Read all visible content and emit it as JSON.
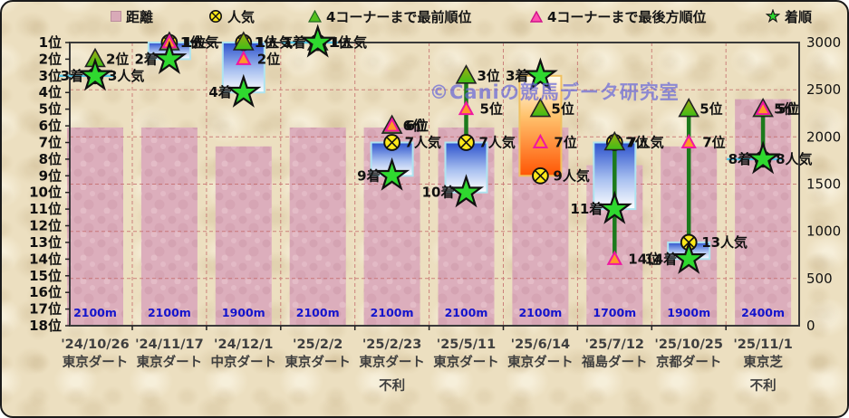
{
  "watermark": "©Caniの競馬データ研究室",
  "legend": {
    "items": [
      {
        "icon": "distance-swatch-icon",
        "label": "距離"
      },
      {
        "icon": "popularity-circle-icon",
        "label": "人気"
      },
      {
        "icon": "front-position-triangle-icon",
        "label": "4コーナーまで最前順位"
      },
      {
        "icon": "rear-position-triangle-icon",
        "label": "4コーナーまで最後方順位"
      },
      {
        "icon": "finish-star-icon",
        "label": "着順"
      }
    ]
  },
  "axes": {
    "left_ticks": [
      "1位",
      "2位",
      "3位",
      "4位",
      "5位",
      "6位",
      "7位",
      "8位",
      "9位",
      "10位",
      "11位",
      "12位",
      "13位",
      "14位",
      "15位",
      "16位",
      "17位",
      "18位"
    ],
    "right_ticks": [
      "3000",
      "2500",
      "2000",
      "1500",
      "1000",
      "500",
      "0"
    ]
  },
  "colors": {
    "bar": "#dcaebc",
    "bar_speck": "#cb94a6",
    "grid": "#c46a6a",
    "bar_label": "#1414cc",
    "star_fill": "#2fd82f",
    "circle_fill": "#ffe81a",
    "front_tri_fill": "#6fb01a",
    "rear_tri_fill": "#ff9828",
    "rear_tri_stroke": "#f016a0",
    "box_blue_top": "#2a50cc",
    "box_orange_bottom": "#ff5504",
    "leader_line": "#55c8e8",
    "hilo_line": "#1c7a1c"
  },
  "chart_data": {
    "type": "combo (distance bars + position markers)",
    "title": "",
    "y_left": {
      "min": 1,
      "max": 18,
      "suffix": "位"
    },
    "y_right": {
      "min": 0,
      "max": 3000,
      "step": 500
    },
    "legend_position": "top",
    "grid": "dashed red, vertical between columns and horizontal each 500m",
    "races": [
      {
        "date": "'24/10/26",
        "venue": "東京ダート",
        "distance_m": 2100,
        "distance_label": "2100m",
        "popularity": 3,
        "finish": 3,
        "corner_front": 2,
        "corner_rear": null,
        "note": "",
        "box": null,
        "line": null,
        "leader": true,
        "front_label": "2位",
        "rear_label": "",
        "pop_label": "3人気",
        "finish_label": "3着"
      },
      {
        "date": "'24/11/17",
        "venue": "東京ダート",
        "distance_m": 2100,
        "distance_label": "2100m",
        "popularity": 1,
        "finish": 2,
        "corner_front": 1,
        "corner_rear": 1,
        "note": "",
        "box": {
          "from": 1,
          "to": 2,
          "color": "blue"
        },
        "line": null,
        "leader": false,
        "front_label": "1位",
        "rear_label": "1位",
        "pop_label": "1人気",
        "finish_label": "2着"
      },
      {
        "date": "'24/12/1",
        "venue": "中京ダート",
        "distance_m": 1900,
        "distance_label": "1900m",
        "popularity": 1,
        "finish": 4,
        "corner_front": 1,
        "corner_rear": 2,
        "note": "",
        "box": {
          "from": 1,
          "to": 4,
          "color": "blue"
        },
        "line": null,
        "leader": false,
        "front_label": "1位",
        "rear_label": "2位",
        "pop_label": "1人気",
        "finish_label": "4着"
      },
      {
        "date": "'25/2/2",
        "venue": "東京ダート",
        "distance_m": 2100,
        "distance_label": "2100m",
        "popularity": 1,
        "finish": 1,
        "corner_front": 1,
        "corner_rear": null,
        "note": "",
        "box": null,
        "line": null,
        "leader": true,
        "front_label": "1位",
        "rear_label": "",
        "pop_label": "1人気",
        "finish_label": "1着"
      },
      {
        "date": "'25/2/23",
        "venue": "東京ダート",
        "distance_m": 2100,
        "distance_label": "2100m",
        "popularity": 7,
        "finish": 9,
        "corner_front": 6,
        "corner_rear": 6,
        "note": "不利",
        "box": {
          "from": 7,
          "to": 9,
          "color": "blue"
        },
        "line": null,
        "leader": false,
        "front_label": "6位",
        "rear_label": "6位",
        "pop_label": "7人気",
        "finish_label": "9着"
      },
      {
        "date": "'25/5/11",
        "venue": "東京ダート",
        "distance_m": 2100,
        "distance_label": "2100m",
        "popularity": 7,
        "finish": 10,
        "corner_front": 3,
        "corner_rear": 5,
        "note": "",
        "box": {
          "from": 7,
          "to": 10,
          "color": "blue"
        },
        "line": {
          "from": 3,
          "to": 7
        },
        "leader": false,
        "front_label": "3位",
        "rear_label": "5位",
        "pop_label": "7人気",
        "finish_label": "10着"
      },
      {
        "date": "'25/6/14",
        "venue": "東京ダート",
        "distance_m": 2100,
        "distance_label": "2100m",
        "popularity": 9,
        "finish": 3,
        "corner_front": 5,
        "corner_rear": 7,
        "note": "",
        "box": {
          "from": 3,
          "to": 9,
          "color": "orange"
        },
        "line": null,
        "leader": false,
        "front_label": "5位",
        "rear_label": "7位",
        "pop_label": "9人気",
        "finish_label": "3着"
      },
      {
        "date": "'25/7/12",
        "venue": "福島ダート",
        "distance_m": 1700,
        "distance_label": "1700m",
        "popularity": 7,
        "finish": 11,
        "corner_front": 7,
        "corner_rear": 14,
        "note": "",
        "box": {
          "from": 7,
          "to": 11,
          "color": "blue"
        },
        "line": {
          "from": 7,
          "to": 14
        },
        "leader": false,
        "front_label": "7位",
        "rear_label": "14位",
        "pop_label": "7人気",
        "finish_label": "11着"
      },
      {
        "date": "'25/10/25",
        "venue": "京都ダート",
        "distance_m": 1900,
        "distance_label": "1900m",
        "popularity": 13,
        "finish": 14,
        "corner_front": 5,
        "corner_rear": 7,
        "note": "",
        "box": {
          "from": 13,
          "to": 14,
          "color": "blue"
        },
        "line": {
          "from": 5,
          "to": 13
        },
        "leader": false,
        "front_label": "5位",
        "rear_label": "7位",
        "pop_label": "13人気",
        "finish_label": "14着"
      },
      {
        "date": "'25/11/1",
        "venue": "東京芝",
        "distance_m": 2400,
        "distance_label": "2400m",
        "popularity": 8,
        "finish": 8,
        "corner_front": 5,
        "corner_rear": 5,
        "note": "不利",
        "box": null,
        "line": {
          "from": 5,
          "to": 8
        },
        "leader": true,
        "front_label": "5位",
        "rear_label": "5位",
        "pop_label": "8人気",
        "finish_label": "8着"
      }
    ]
  }
}
